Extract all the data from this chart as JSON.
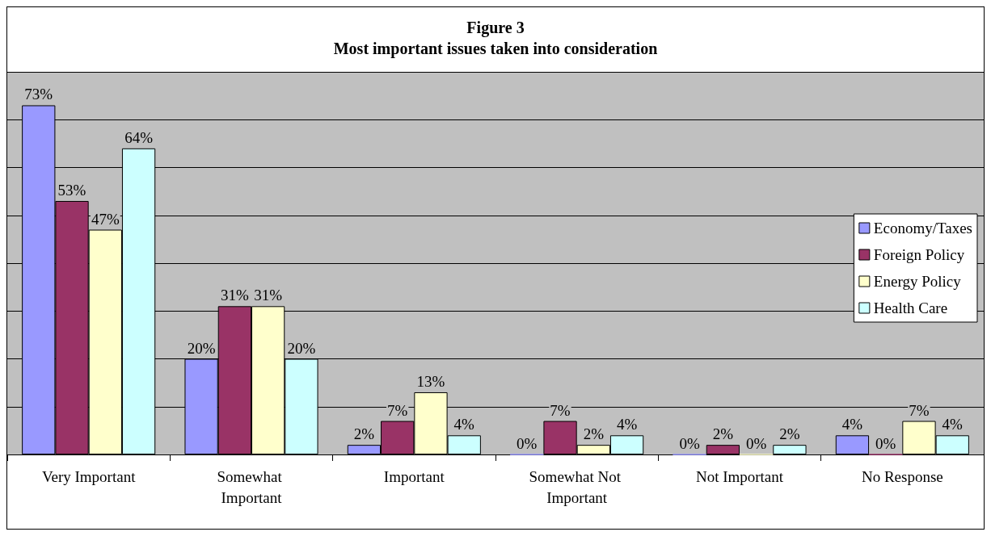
{
  "chart_data": {
    "type": "bar",
    "title": "Figure 3",
    "subtitle": "Most important issues taken into consideration",
    "categories": [
      "Very Important",
      "Somewhat Important",
      "Important",
      "Somewhat Not Important",
      "Not Important",
      "No Response"
    ],
    "series": [
      {
        "name": "Economy/Taxes",
        "color": "#9999ff",
        "values": [
          73,
          20,
          2,
          0,
          0,
          4
        ],
        "value_labels": [
          "73%",
          "20%",
          "2%",
          "0%",
          "0%",
          "4%"
        ]
      },
      {
        "name": "Foreign Policy",
        "color": "#993366",
        "values": [
          53,
          31,
          7,
          7,
          2,
          0
        ],
        "value_labels": [
          "53%",
          "31%",
          "7%",
          "7%",
          "2%",
          "0%"
        ]
      },
      {
        "name": "Energy Policy",
        "color": "#ffffcc",
        "values": [
          47,
          31,
          13,
          2,
          0,
          7
        ],
        "value_labels": [
          "47%",
          "31%",
          "13%",
          "2%",
          "0%",
          "7%"
        ]
      },
      {
        "name": "Health Care",
        "color": "#ccffff",
        "values": [
          64,
          20,
          4,
          4,
          2,
          4
        ],
        "value_labels": [
          "64%",
          "20%",
          "4%",
          "4%",
          "2%",
          "4%"
        ]
      }
    ],
    "ylim": [
      0,
      80
    ],
    "yticks": [
      {
        "value": 0,
        "label": null
      },
      {
        "value": 10,
        "label": null
      },
      {
        "value": 20,
        "label": null
      },
      {
        "value": 30,
        "label": null
      },
      {
        "value": 40,
        "label": null
      },
      {
        "value": 50,
        "label": null
      },
      {
        "value": 60,
        "label": null
      },
      {
        "value": 70,
        "label": null
      },
      {
        "value": 80,
        "label": null
      }
    ],
    "tick_labels": "x",
    "grid": "y",
    "legend": "right"
  }
}
